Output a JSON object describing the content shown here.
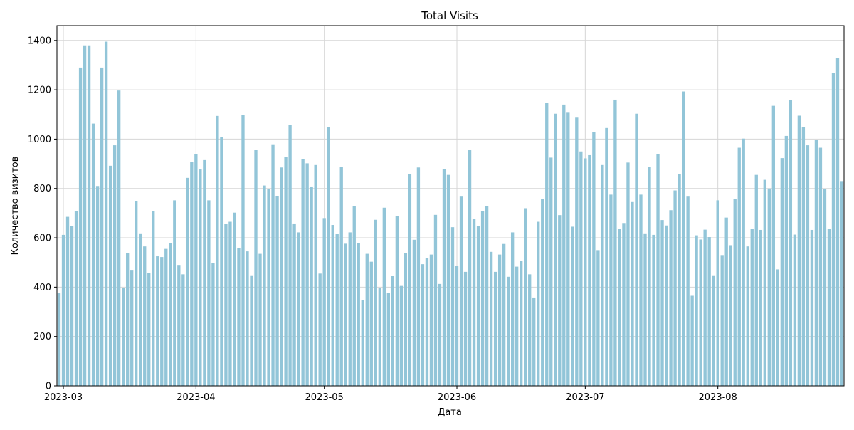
{
  "chart_data": {
    "type": "bar",
    "title": "Total Visits",
    "xlabel": "Дата",
    "ylabel": "Количество визитов",
    "ylim": [
      0,
      1460
    ],
    "y_ticks": [
      0,
      200,
      400,
      600,
      800,
      1000,
      1200,
      1400
    ],
    "x_start_date": "2023-02-28",
    "x_ticks": [
      {
        "label": "2023-03",
        "date": "2023-03-01"
      },
      {
        "label": "2023-04",
        "date": "2023-04-01"
      },
      {
        "label": "2023-05",
        "date": "2023-05-01"
      },
      {
        "label": "2023-06",
        "date": "2023-06-01"
      },
      {
        "label": "2023-07",
        "date": "2023-07-01"
      },
      {
        "label": "2023-08",
        "date": "2023-08-01"
      }
    ],
    "grid": true,
    "bar_color": "#92c5d8",
    "values": [
      375,
      612,
      685,
      648,
      708,
      1290,
      1380,
      1380,
      1063,
      810,
      1290,
      1395,
      892,
      975,
      1197,
      397,
      537,
      470,
      748,
      618,
      565,
      456,
      707,
      525,
      522,
      555,
      578,
      752,
      490,
      452,
      843,
      907,
      938,
      877,
      915,
      752,
      497,
      1094,
      1008,
      657,
      665,
      702,
      558,
      1097,
      545,
      448,
      957,
      535,
      812,
      798,
      979,
      768,
      885,
      928,
      1057,
      658,
      622,
      920,
      902,
      808,
      895,
      455,
      680,
      1048,
      652,
      617,
      887,
      576,
      622,
      728,
      578,
      347,
      535,
      503,
      673,
      397,
      722,
      377,
      445,
      688,
      405,
      538,
      858,
      592,
      885,
      493,
      517,
      532,
      693,
      413,
      880,
      855,
      643,
      485,
      767,
      462,
      955,
      677,
      648,
      707,
      728,
      543,
      462,
      532,
      575,
      442,
      622,
      483,
      507,
      720,
      452,
      358,
      665,
      757,
      1147,
      925,
      1103,
      692,
      1140,
      1107,
      645,
      1087,
      950,
      922,
      935,
      1030,
      550,
      895,
      1045,
      775,
      1160,
      637,
      660,
      905,
      745,
      1103,
      775,
      618,
      887,
      612,
      938,
      672,
      650,
      712,
      792,
      857,
      1193,
      767,
      365,
      610,
      593,
      633,
      603,
      448,
      752,
      530,
      682,
      570,
      757,
      965,
      1002,
      565,
      637,
      855,
      632,
      835,
      800,
      1135,
      472,
      923,
      1013,
      1157,
      613,
      1095,
      1048,
      975,
      632,
      998,
      965,
      797,
      637,
      1268,
      1328,
      830
    ]
  }
}
